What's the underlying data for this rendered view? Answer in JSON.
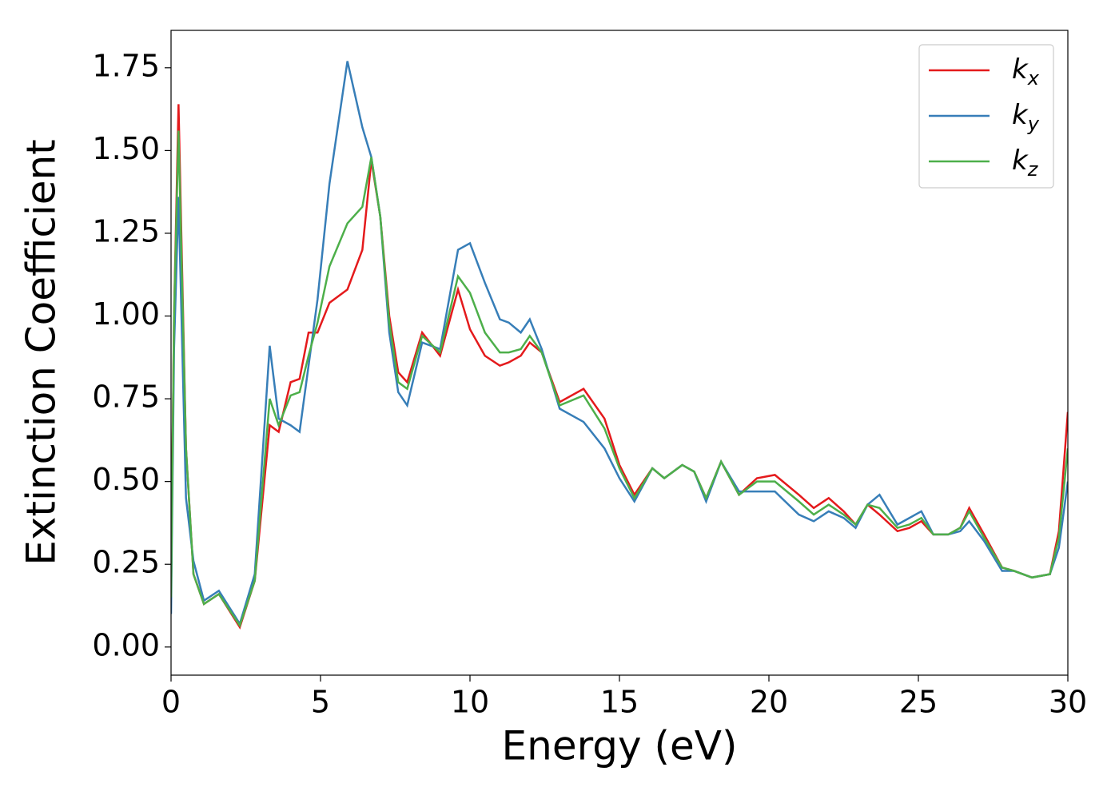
{
  "chart_data": {
    "type": "line",
    "xlabel": "Energy (eV)",
    "ylabel": "Extinction Coefficient",
    "x": [
      0,
      0.1,
      0.25,
      0.5,
      0.75,
      1.1,
      1.6,
      2.3,
      2.8,
      3.3,
      3.6,
      4.0,
      4.3,
      4.6,
      4.9,
      5.3,
      5.9,
      6.4,
      6.7,
      7.0,
      7.3,
      7.6,
      7.9,
      8.4,
      9.0,
      9.6,
      10.0,
      10.5,
      11.0,
      11.3,
      11.7,
      12.0,
      12.4,
      13.0,
      13.8,
      14.5,
      15.0,
      15.5,
      16.1,
      16.5,
      17.1,
      17.5,
      17.9,
      18.4,
      19.0,
      19.6,
      20.2,
      21.0,
      21.5,
      22.0,
      22.5,
      22.9,
      23.3,
      23.7,
      24.3,
      24.7,
      25.1,
      25.5,
      26.0,
      26.4,
      26.7,
      27.2,
      27.8,
      28.2,
      28.8,
      29.4,
      29.7,
      30
    ],
    "series": [
      {
        "name": "kx",
        "color": "#e41a1c",
        "values": [
          0.2,
          1.0,
          1.64,
          0.6,
          0.22,
          0.13,
          0.16,
          0.06,
          0.2,
          0.67,
          0.65,
          0.8,
          0.81,
          0.95,
          0.95,
          1.04,
          1.08,
          1.2,
          1.47,
          1.3,
          1.0,
          0.83,
          0.8,
          0.95,
          0.88,
          1.08,
          0.96,
          0.88,
          0.85,
          0.86,
          0.88,
          0.92,
          0.89,
          0.74,
          0.78,
          0.69,
          0.55,
          0.46,
          0.54,
          0.51,
          0.55,
          0.53,
          0.45,
          0.56,
          0.46,
          0.51,
          0.52,
          0.46,
          0.42,
          0.45,
          0.41,
          0.37,
          0.43,
          0.4,
          0.35,
          0.36,
          0.38,
          0.34,
          0.34,
          0.36,
          0.42,
          0.34,
          0.24,
          0.23,
          0.21,
          0.22,
          0.35,
          0.71
        ]
      },
      {
        "name": "ky",
        "color": "#377eb8",
        "values": [
          0.1,
          0.9,
          1.36,
          0.45,
          0.26,
          0.14,
          0.17,
          0.07,
          0.22,
          0.91,
          0.69,
          0.67,
          0.65,
          0.85,
          1.05,
          1.4,
          1.77,
          1.57,
          1.48,
          1.3,
          0.95,
          0.77,
          0.73,
          0.92,
          0.9,
          1.2,
          1.22,
          1.1,
          0.99,
          0.98,
          0.95,
          0.99,
          0.9,
          0.72,
          0.68,
          0.6,
          0.51,
          0.44,
          0.54,
          0.51,
          0.55,
          0.53,
          0.44,
          0.56,
          0.47,
          0.47,
          0.47,
          0.4,
          0.38,
          0.41,
          0.39,
          0.36,
          0.43,
          0.46,
          0.37,
          0.39,
          0.41,
          0.34,
          0.34,
          0.35,
          0.38,
          0.32,
          0.23,
          0.23,
          0.21,
          0.22,
          0.3,
          0.5
        ]
      },
      {
        "name": "kz",
        "color": "#4daf4a",
        "values": [
          0.15,
          1.0,
          1.56,
          0.6,
          0.22,
          0.13,
          0.16,
          0.065,
          0.2,
          0.75,
          0.67,
          0.76,
          0.77,
          0.88,
          0.98,
          1.15,
          1.28,
          1.33,
          1.48,
          1.3,
          0.98,
          0.8,
          0.78,
          0.94,
          0.89,
          1.12,
          1.07,
          0.95,
          0.89,
          0.89,
          0.9,
          0.94,
          0.89,
          0.73,
          0.76,
          0.66,
          0.54,
          0.45,
          0.54,
          0.51,
          0.55,
          0.53,
          0.45,
          0.56,
          0.46,
          0.5,
          0.5,
          0.44,
          0.4,
          0.43,
          0.4,
          0.37,
          0.43,
          0.42,
          0.36,
          0.37,
          0.39,
          0.34,
          0.34,
          0.36,
          0.41,
          0.33,
          0.24,
          0.23,
          0.21,
          0.22,
          0.33,
          0.6
        ]
      }
    ],
    "xlim": [
      0,
      30
    ],
    "xticks": [
      0,
      5,
      10,
      15,
      20,
      25,
      30
    ],
    "ylim": [
      -0.085,
      1.863
    ],
    "yticks": [
      {
        "value": 0,
        "label": "0.00"
      },
      0.25,
      {
        "value": 0.5,
        "label": "0.50"
      },
      0.75,
      {
        "value": 1,
        "label": "1.00"
      },
      1.25,
      {
        "value": 1.5,
        "label": "1.50"
      },
      1.75
    ],
    "grid": false,
    "legend": "upper right"
  }
}
